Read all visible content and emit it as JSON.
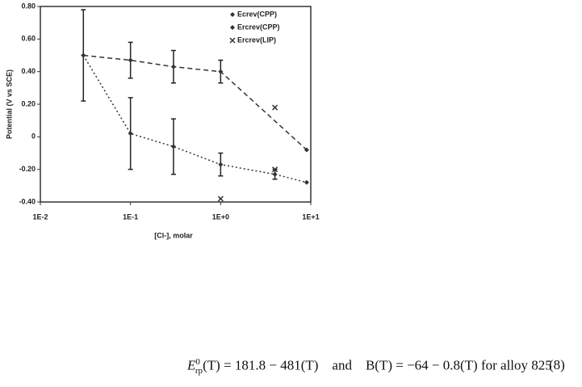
{
  "chart_data": {
    "type": "scatter",
    "y_label": "Potential (V vs SCE)",
    "x_label": "[Cl-], molar",
    "x_log": true,
    "xlim": [
      0.01,
      10
    ],
    "xticks": [
      {
        "value": 0.01,
        "label": "1E-2"
      },
      {
        "value": 0.1,
        "label": "1E-1"
      },
      {
        "value": 1,
        "label": "1E+0"
      },
      {
        "value": 10,
        "label": "1E+1"
      }
    ],
    "ylim": [
      -0.4,
      0.8
    ],
    "yticks": [
      {
        "value": 0.8,
        "label": "0.80"
      },
      {
        "value": 0.6,
        "label": "0.60"
      },
      {
        "value": 0.4,
        "label": "0.40"
      },
      {
        "value": 0.2,
        "label": "0.20"
      },
      0,
      {
        "value": -0.2,
        "label": "-0.20"
      },
      {
        "value": -0.4,
        "label": "-0.40"
      }
    ],
    "legend": "top-right",
    "series": [
      {
        "name": "Ecrev(CPP)",
        "color": "#333333",
        "marker": "diamond",
        "line_style": "dashed",
        "x": [
          0.03,
          0.1,
          0.3,
          1,
          9
        ],
        "values": [
          0.5,
          0.47,
          0.43,
          0.4,
          -0.08
        ],
        "errors": [
          0.28,
          0.11,
          0.1,
          0.07,
          null
        ]
      },
      {
        "name": "Ercrev(CPP)",
        "color": "#333333",
        "marker": "diamond",
        "line_style": "dotted",
        "x": [
          0.03,
          0.1,
          0.3,
          1,
          4,
          9
        ],
        "values": [
          0.5,
          0.02,
          -0.06,
          -0.17,
          -0.23,
          -0.28
        ],
        "errors": [
          null,
          0.22,
          0.17,
          0.07,
          0.03,
          null
        ]
      },
      {
        "name": "Ercrev(LIP)",
        "color": "#333333",
        "marker": "cross",
        "line_style": "none",
        "x": [
          1,
          4,
          4
        ],
        "values": [
          -0.38,
          -0.2,
          0.18
        ],
        "errors": [
          null,
          null,
          null
        ]
      }
    ]
  },
  "equation": {
    "symbol": "E",
    "sup": "0",
    "sub": "rp",
    "text": "(T) = 181.8 − 481(T)    and    B(T) = −64 − 0.8(T) for alloy 825",
    "number": "(8)"
  }
}
